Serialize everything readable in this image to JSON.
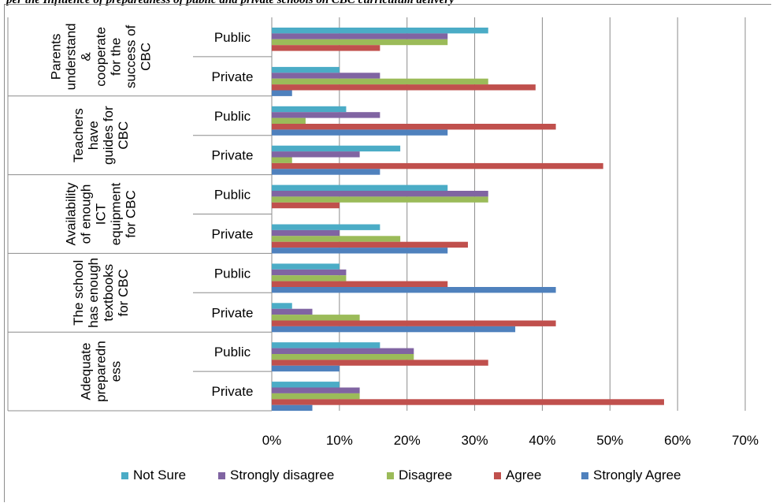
{
  "caption": "per the Influence of preparedness of public and private schools on CBC curriculum delivery",
  "chart_data": {
    "type": "bar",
    "orientation": "horizontal",
    "title": "",
    "xlabel": "",
    "ylabel": "",
    "xlim": [
      0,
      70
    ],
    "xticks": [
      "0%",
      "10%",
      "20%",
      "30%",
      "40%",
      "50%",
      "60%",
      "70%"
    ],
    "grid": "vertical",
    "legend_position": "bottom",
    "groups": [
      {
        "label": "Parents understand & cooperate for the success of CBC",
        "lines": [
          "Parents",
          "understand",
          "&",
          "cooperate",
          "for the",
          "success of",
          "CBC"
        ]
      },
      {
        "label": "Teachers have guides for CBC",
        "lines": [
          "Teachers",
          "have",
          "guides for",
          "CBC"
        ]
      },
      {
        "label": "Availability of enough ICT equipment for CBC",
        "lines": [
          "Availability",
          "of enough",
          "ICT",
          "equipment",
          "for CBC"
        ]
      },
      {
        "label": "The school has enough textbooks for CBC",
        "lines": [
          "The school",
          "has enough",
          "textbooks",
          "for CBC"
        ]
      },
      {
        "label": "Adequate preparedness",
        "lines": [
          "Adequate",
          "preparedn",
          "ess"
        ]
      }
    ],
    "categories": [
      "Public",
      "Private",
      "Public",
      "Private",
      "Public",
      "Private",
      "Public",
      "Private",
      "Public",
      "Private"
    ],
    "series": [
      {
        "name": "Not Sure",
        "color": "#4bacc6",
        "values": [
          32,
          10,
          11,
          19,
          26,
          16,
          10,
          3,
          16,
          10
        ]
      },
      {
        "name": "Strongly disagree",
        "color": "#8064a2",
        "values": [
          26,
          16,
          16,
          13,
          32,
          10,
          11,
          6,
          21,
          13
        ]
      },
      {
        "name": "Disagree",
        "color": "#9bbb59",
        "values": [
          26,
          32,
          5,
          3,
          32,
          19,
          11,
          13,
          21,
          13
        ]
      },
      {
        "name": "Agree",
        "color": "#c0504d",
        "values": [
          16,
          39,
          42,
          49,
          10,
          29,
          26,
          42,
          32,
          58
        ]
      },
      {
        "name": "Strongly Agree",
        "color": "#4f81bd",
        "values": [
          0,
          3,
          26,
          16,
          0,
          26,
          42,
          36,
          10,
          6
        ]
      }
    ]
  }
}
